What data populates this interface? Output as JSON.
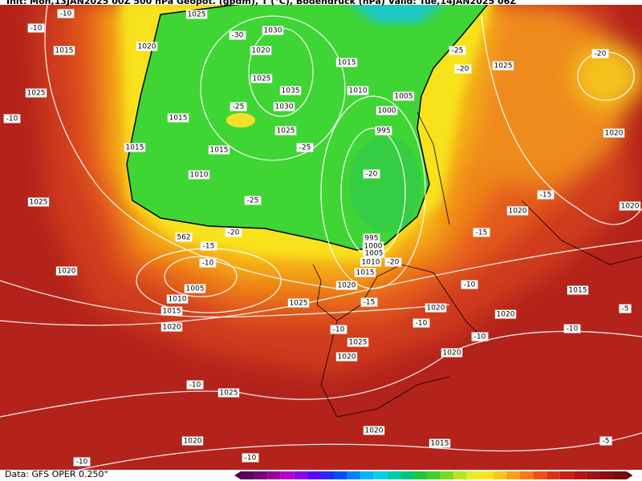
{
  "header": {
    "title": "Init: Mon,13JAN2025 00Z   500 hPa Geopot. (gpdm), T (°C), Bodendruck (hPa)   Valid: Tue,14JAN2025 06Z"
  },
  "footer": {
    "source": "Data: GFS OPER 0.250°"
  },
  "isobar_labels": [
    "1015",
    "1020",
    "1025",
    "1030",
    "1020",
    "1025",
    "1035",
    "1030",
    "1025",
    "1015",
    "1015",
    "1015",
    "1010",
    "1010",
    "1015",
    "1005",
    "1000",
    "995",
    "1025",
    "1025",
    "1025",
    "1020",
    "1020",
    "1020",
    "995",
    "1000",
    "1005",
    "1010",
    "1015",
    "1020",
    "1020",
    "1005",
    "1010",
    "1015",
    "1020",
    "1025",
    "1020",
    "1020",
    "1015",
    "1025",
    "1020",
    "1020",
    "1025",
    "1020",
    "1020",
    "1015",
    "562"
  ],
  "temperature_labels": [
    "-10",
    "-10",
    "-30",
    "-25",
    "-25",
    "-25",
    "-20",
    "-20",
    "-15",
    "-10",
    "-20",
    "-20",
    "-25",
    "-20",
    "-15",
    "-15",
    "-10",
    "-15",
    "-10",
    "-10",
    "-10",
    "-10",
    "-5",
    "-10",
    "-10",
    "-10",
    "-5",
    "-10"
  ]
}
